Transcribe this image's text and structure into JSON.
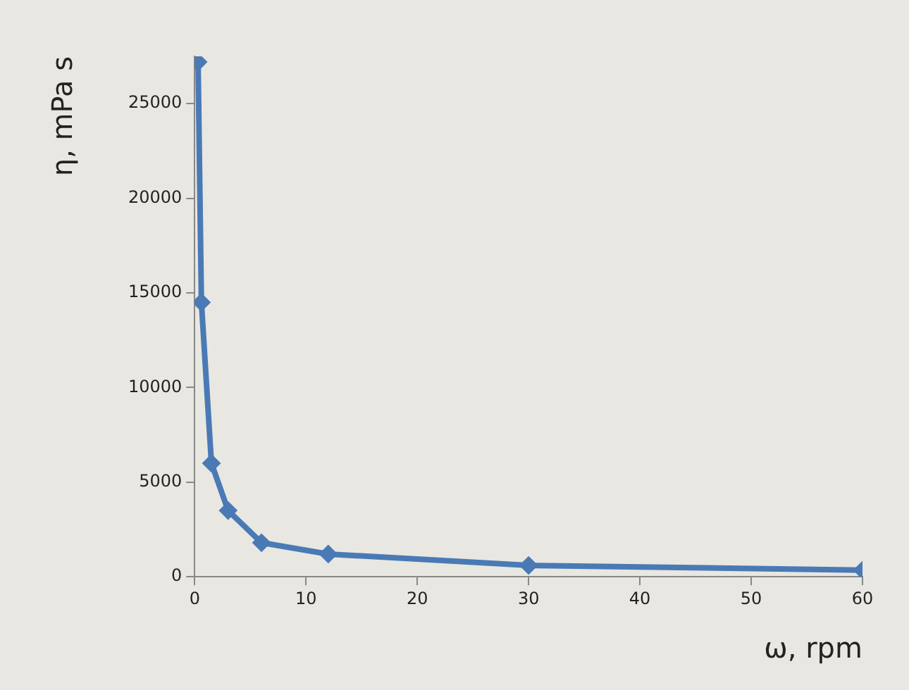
{
  "chart_data": {
    "type": "line",
    "xlabel": "ω, rpm",
    "ylabel": "η, mPa s",
    "x": [
      0.3,
      0.6,
      1.5,
      3,
      6,
      12,
      30,
      60
    ],
    "series": [
      {
        "color": "#4a7ab5",
        "values": [
          27200,
          14500,
          6000,
          3500,
          1800,
          1200,
          600,
          350
        ]
      }
    ],
    "xlim": [
      0,
      60
    ],
    "xticks": [
      0,
      10,
      20,
      30,
      40,
      50,
      60
    ],
    "ylim": [
      0,
      27500
    ],
    "yticks": [
      0,
      5000,
      10000,
      15000,
      20000,
      25000
    ],
    "grid": false,
    "legend": false,
    "marker": "diamond",
    "line_style": "solid"
  }
}
